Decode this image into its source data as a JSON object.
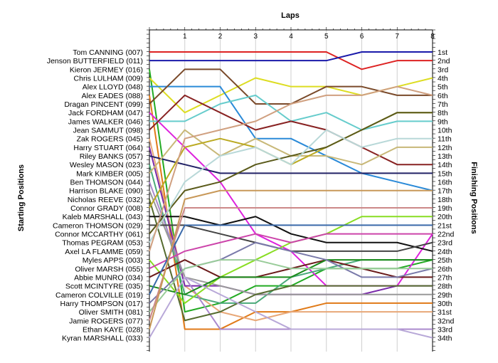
{
  "chart_data": {
    "type": "line",
    "title": "Laps",
    "ylabel_left": "Starting Positions",
    "ylabel_right": "Finishing Positions",
    "x_ticks": [
      "1",
      "2",
      "3",
      "4",
      "5",
      "6",
      "7",
      "8"
    ],
    "y_left_labels": [
      "Tom CANNING (007)",
      "Jenson BUTTERFIELD (011)",
      "Kieron JERMEY (016)",
      "Chris LULHAM (009)",
      "Alex LLOYD (048)",
      "Alex EADES (088)",
      "Dragan PINCENT (099)",
      "Jack FORDHAM (047)",
      "James WALKER (046)",
      "Jean SAMMUT (098)",
      "Zak ROGERS (045)",
      "Harry STUART (064)",
      "Riley BANKS (057)",
      "Wesley MASON (023)",
      "Mark KIMBER (005)",
      "Ben THOMSON (044)",
      "Harrison BLAKE (090)",
      "Nicholas REEVE (032)",
      "Connor GRADY (008)",
      "Kaleb MARSHALL (043)",
      "Cameron THOMSON (029)",
      "Connor MCCARTHY (061)",
      "Thomas PEGRAM (053)",
      "Axel LA FLAMME (059)",
      "Myles APPS (003)",
      "Oliver MARSH (055)",
      "Abbie MUNRO (034)",
      "Scott MCINTYRE (035)",
      "Cameron COLVILLE (019)",
      "Harry THOMPSON (017)",
      "Oliver SMITH (081)",
      "Jamie ROGERS (077)",
      "Ethan KAYE (028)",
      "Kyran MARSHALL (033)"
    ],
    "y_right_labels": [
      "1st",
      "2nd",
      "3rd",
      "4th",
      "5th",
      "6th",
      "7th",
      "8th",
      "9th",
      "10th",
      "11th",
      "12th",
      "13th",
      "14th",
      "15th",
      "16th",
      "17th",
      "18th",
      "19th",
      "20th",
      "21st",
      "22nd",
      "23rd",
      "24th",
      "25th",
      "26th",
      "27th",
      "28th",
      "29th",
      "30th",
      "31st",
      "32nd",
      "33rd",
      "34th"
    ],
    "series": [
      {
        "color": "#dd2222",
        "values": [
          1,
          1,
          1,
          1,
          1,
          1,
          3,
          2,
          2
        ]
      },
      {
        "color": "#1a1aaa",
        "values": [
          2,
          2,
          2,
          2,
          2,
          2,
          1,
          1,
          1
        ]
      },
      {
        "color": "#22aa22",
        "values": [
          3,
          31,
          30,
          28,
          28,
          26,
          26,
          26,
          25
        ]
      },
      {
        "color": "#dddd22",
        "values": [
          4,
          8,
          6,
          4,
          5,
          5,
          6,
          5,
          4
        ]
      },
      {
        "color": "#2a8ad8",
        "values": [
          5,
          5,
          5,
          11,
          11,
          13,
          15,
          16,
          17
        ]
      },
      {
        "color": "#e07a18",
        "values": [
          6,
          33,
          33,
          31,
          31,
          30,
          30,
          30,
          30
        ]
      },
      {
        "color": "#7a4a2a",
        "values": [
          7,
          3,
          3,
          7,
          7,
          5,
          5,
          6,
          6
        ]
      },
      {
        "color": "#dd22dd",
        "values": [
          8,
          12,
          16,
          22,
          24,
          28,
          28,
          28,
          22
        ]
      },
      {
        "color": "#66cccc",
        "values": [
          9,
          9,
          7,
          6,
          9,
          8,
          10,
          9,
          9
        ]
      },
      {
        "color": "#882222",
        "values": [
          10,
          6,
          8,
          10,
          9,
          10,
          12,
          14,
          14
        ]
      },
      {
        "color": "#e8a878",
        "values": [
          11,
          28,
          31,
          32,
          31,
          31,
          31,
          31,
          31
        ]
      },
      {
        "color": "#7a2aaa",
        "values": [
          12,
          28,
          28,
          29,
          29,
          29,
          29,
          28,
          28
        ]
      },
      {
        "color": "#222266",
        "values": [
          13,
          14,
          15,
          15,
          15,
          15,
          15,
          15,
          15
        ]
      },
      {
        "color": "#4aaa7a",
        "values": [
          14,
          29,
          30,
          30,
          27,
          26,
          25,
          25,
          25
        ]
      },
      {
        "color": "#c8b878",
        "values": [
          15,
          10,
          13,
          11,
          13,
          13,
          14,
          12,
          12
        ]
      },
      {
        "color": "#aa88cc",
        "values": [
          16,
          27,
          33,
          33,
          33,
          33,
          33,
          33,
          33
        ]
      },
      {
        "color": "#999999",
        "values": [
          17,
          27,
          28,
          29,
          29,
          29,
          29,
          29,
          29
        ]
      },
      {
        "color": "#556b2f",
        "values": [
          18,
          32,
          31,
          29,
          28,
          28,
          28,
          28,
          28
        ]
      },
      {
        "color": "#bbaa22",
        "values": [
          19,
          12,
          11,
          12,
          14,
          12,
          10,
          8,
          8
        ]
      },
      {
        "color": "#111111",
        "values": [
          20,
          20,
          21,
          20,
          22,
          23,
          23,
          23,
          24
        ]
      },
      {
        "color": "#444444",
        "values": [
          21,
          21,
          22,
          23,
          24,
          24,
          24,
          24,
          23
        ]
      },
      {
        "color": "#5a5a1a",
        "values": [
          22,
          17,
          16,
          14,
          13,
          12,
          10,
          8,
          8
        ]
      },
      {
        "color": "#b8d8d8",
        "values": [
          23,
          16,
          13,
          12,
          14,
          10,
          12,
          11,
          11
        ]
      },
      {
        "color": "#d0a080",
        "values": [
          24,
          11,
          10,
          9,
          7,
          6,
          6,
          5,
          6
        ]
      },
      {
        "color": "#88dd22",
        "values": [
          25,
          30,
          27,
          25,
          23,
          22,
          20,
          20,
          20
        ]
      },
      {
        "color": "#cc44aa",
        "values": [
          26,
          24,
          23,
          22,
          23,
          22,
          22,
          22,
          22
        ]
      },
      {
        "color": "#6a1a1a",
        "values": [
          27,
          25,
          27,
          27,
          26,
          25,
          26,
          27,
          27
        ]
      },
      {
        "color": "#1a8a1a",
        "values": [
          28,
          29,
          27,
          27,
          27,
          25,
          25,
          25,
          25
        ]
      },
      {
        "color": "#3a6aaa",
        "values": [
          29,
          21,
          21,
          21,
          21,
          21,
          21,
          21,
          21
        ]
      },
      {
        "color": "#7a7aaa",
        "values": [
          30,
          26,
          25,
          23,
          24,
          25,
          27,
          27,
          26
        ]
      },
      {
        "color": "#99cc99",
        "values": [
          31,
          26,
          25,
          25,
          26,
          26,
          26,
          26,
          26
        ]
      },
      {
        "color": "#cc8888",
        "values": [
          32,
          19,
          19,
          19,
          19,
          19,
          19,
          19,
          19
        ]
      },
      {
        "color": "#c89858",
        "values": [
          33,
          18,
          17,
          17,
          17,
          17,
          17,
          17,
          17
        ]
      },
      {
        "color": "#b8a8d8",
        "values": [
          34,
          27,
          29,
          31,
          33,
          33,
          33,
          33,
          34
        ]
      }
    ]
  }
}
